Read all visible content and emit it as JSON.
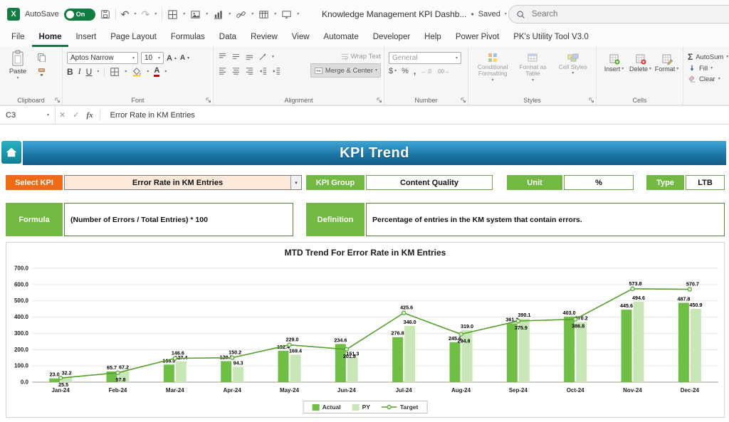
{
  "title_bar": {
    "autosave_label": "AutoSave",
    "autosave_state": "On",
    "doc_title": "Knowledge Management KPI Dashb...",
    "saved_status": "Saved",
    "search_placeholder": "Search"
  },
  "menu": {
    "tabs": [
      {
        "label": "File",
        "active": false
      },
      {
        "label": "Home",
        "active": true
      },
      {
        "label": "Insert",
        "active": false
      },
      {
        "label": "Page Layout",
        "active": false
      },
      {
        "label": "Formulas",
        "active": false
      },
      {
        "label": "Data",
        "active": false
      },
      {
        "label": "Review",
        "active": false
      },
      {
        "label": "View",
        "active": false
      },
      {
        "label": "Automate",
        "active": false
      },
      {
        "label": "Developer",
        "active": false
      },
      {
        "label": "Help",
        "active": false
      },
      {
        "label": "Power Pivot",
        "active": false
      },
      {
        "label": "PK's Utility Tool V3.0",
        "active": false
      }
    ]
  },
  "ribbon": {
    "paste_label": "Paste",
    "font_name": "Aptos Narrow",
    "font_size": "10",
    "wrap_text_label": "Wrap Text",
    "merge_center_label": "Merge & Center",
    "number_format": "General",
    "styles_buttons": [
      "Conditional Formatting",
      "Format as Table",
      "Cell Styles"
    ],
    "cells_buttons": [
      "Insert",
      "Delete",
      "Format"
    ],
    "editing_buttons": [
      "AutoSum",
      "Fill",
      "Clear"
    ],
    "group_labels": [
      "Clipboard",
      "Font",
      "Alignment",
      "Number",
      "Styles",
      "Cells"
    ]
  },
  "formula_bar": {
    "name_box": "C3",
    "fx": "fx",
    "content": "Error Rate in KM Entries"
  },
  "sheet": {
    "banner_title": "KPI Trend",
    "select_kpi_label": "Select KPI",
    "selected_kpi": "Error Rate in KM Entries",
    "kpi_group_label": "KPI Group",
    "kpi_group_value": "Content Quality",
    "unit_label": "Unit",
    "unit_value": "%",
    "type_label": "Type",
    "type_value": "LTB",
    "formula_label": "Formula",
    "formula_value": "(Number of Errors / Total Entries) * 100",
    "definition_label": "Definition",
    "definition_value": "Percentage of entries in the KM system that contain errors."
  },
  "chart_data": {
    "type": "bar",
    "title": "MTD Trend For Error Rate in KM Entries",
    "categories": [
      "Jan-24",
      "Feb-24",
      "Mar-24",
      "Apr-24",
      "May-24",
      "Jun-24",
      "Jul-24",
      "Aug-24",
      "Sep-24",
      "Oct-24",
      "Nov-24",
      "Dec-24"
    ],
    "series": [
      {
        "name": "Actual",
        "type": "bar",
        "color": "#6fbe45",
        "values": [
          23.0,
          65.7,
          108.0,
          129.3,
          192.4,
          234.6,
          276.8,
          245.6,
          361.2,
          403.0,
          445.6,
          487.8
        ]
      },
      {
        "name": "PY",
        "type": "bar",
        "color": "#c9e7b6",
        "values": [
          32.2,
          67.2,
          127.4,
          94.3,
          169.4,
          151.3,
          346.0,
          319.0,
          390.1,
          370.2,
          494.6,
          450.9
        ]
      },
      {
        "name": "Target",
        "type": "line",
        "color": "#55a02e",
        "values": [
          25.5,
          57.8,
          146.6,
          150.2,
          229.0,
          201.8,
          425.6,
          294.8,
          375.9,
          386.8,
          573.8,
          570.7
        ]
      }
    ],
    "ylim": [
      0,
      700
    ],
    "ytick_step": 100,
    "grid": true,
    "legend_position": "bottom"
  },
  "colors": {
    "excel_green": "#107c41",
    "banner_blue_top": "#3fa6d8",
    "banner_blue_bottom": "#135a84",
    "label_green": "#72b843",
    "select_kpi_orange": "#ee6a16",
    "kpi_box_fill": "#fde9da",
    "box_border_green": "#538135"
  }
}
